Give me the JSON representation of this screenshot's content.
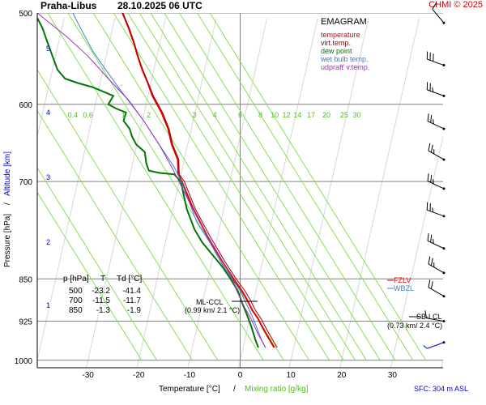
{
  "header": {
    "station": "Praha-Libus",
    "datetime": "28.10.2025 06 UTC",
    "credit": "CHMI © 2025"
  },
  "legend": {
    "title": "EMAGRAM",
    "items": [
      {
        "label": "temperature",
        "color": "#e00000"
      },
      {
        "label": "virt.temp.",
        "color": "#a00000"
      },
      {
        "label": "dew point",
        "color": "#007700"
      },
      {
        "label": "wet bulb temp.",
        "color": "#3a7fd0"
      },
      {
        "label": "udprafť v.temp.",
        "color": "#a030c0"
      }
    ]
  },
  "table": {
    "headers": [
      "p [hPa]",
      "T",
      "Td [°C]"
    ],
    "rows": [
      [
        "500",
        "-23.2",
        "-41.4"
      ],
      [
        "700",
        "-11.5",
        "-11.7"
      ],
      [
        "850",
        "-1.3",
        "-1.9"
      ]
    ]
  },
  "annotations": {
    "ml_ccl_label": "ML-CCL",
    "ml_ccl_value": "(0.99 km/ 2.1 °C)",
    "sb_lcl_label": "SB-LCL",
    "sb_lcl_value": "(0.73 km/ 2.4 °C)",
    "fzl": "FZLV",
    "wbzl": "WBZL",
    "sfc": "SFC: 304 m ASL"
  },
  "colors": {
    "temperature": "#e00000",
    "virt_temp": "#a00000",
    "dew_point": "#007700",
    "wet_bulb": "#3a7fd0",
    "updraft": "#a030c0",
    "mixing_ratio_lines": "#7ddc4a",
    "isotherm_grid": "#808080",
    "altitude_label": "#0000cc",
    "mixing_label": "#55bb22",
    "wind_barb": "#000000",
    "sfc_wind": "#0000cc"
  },
  "chart_data": {
    "type": "line",
    "title": "EMAGRAM",
    "xlabel": "Temperature [°C]",
    "xlabel_sep": "/",
    "xlabel2": "Mixing ratio [g/kg]",
    "ylabel": "Pressure [hPa]",
    "ylabel_sep": "/",
    "ylabel2": "Altitude [km]",
    "y_scale": "log",
    "x_range": [
      -40,
      40
    ],
    "y_range": [
      1015,
      500
    ],
    "x_ticks": [
      -30,
      -20,
      -10,
      0,
      10,
      20,
      30
    ],
    "y_ticks": [
      500,
      600,
      700,
      850,
      925,
      1000
    ],
    "altitude_ticks": [
      {
        "km": 1,
        "p": 896
      },
      {
        "km": 2,
        "p": 790
      },
      {
        "km": 3,
        "p": 694
      },
      {
        "km": 4,
        "p": 610
      },
      {
        "km": 5,
        "p": 537
      }
    ],
    "mixing_ratio_labels": [
      "0.4",
      "0.6",
      "1",
      "2",
      "3",
      "4",
      "6",
      "8",
      "10",
      "12",
      "14",
      "17",
      "20",
      "25",
      "30"
    ],
    "mixing_ratio_label_temps": [
      -33,
      -30,
      -23,
      -18,
      -9,
      -5,
      0,
      4,
      6.8,
      9.1,
      11.3,
      14,
      17,
      20.5,
      23
    ],
    "series": [
      {
        "name": "temperature",
        "color": "#e00000",
        "points": [
          [
            6.7,
            975
          ],
          [
            5.8,
            960
          ],
          [
            4.6,
            940
          ],
          [
            3.5,
            920
          ],
          [
            2.4,
            905
          ],
          [
            1.3,
            885
          ],
          [
            0.3,
            870
          ],
          [
            -1.3,
            850
          ],
          [
            -3.6,
            820
          ],
          [
            -6.5,
            780
          ],
          [
            -9.2,
            740
          ],
          [
            -11.5,
            700
          ],
          [
            -12.2,
            690
          ],
          [
            -12.3,
            670
          ],
          [
            -13.5,
            650
          ],
          [
            -14.2,
            630
          ],
          [
            -15.5,
            610
          ],
          [
            -17.3,
            590
          ],
          [
            -18.2,
            575
          ],
          [
            -19.3,
            560
          ],
          [
            -20.2,
            545
          ],
          [
            -21.0,
            530
          ],
          [
            -22.0,
            515
          ],
          [
            -23.2,
            500
          ]
        ]
      },
      {
        "name": "virt.temp.",
        "color": "#a00000",
        "points": [
          [
            7.3,
            975
          ],
          [
            6.4,
            960
          ],
          [
            5.2,
            940
          ],
          [
            4.1,
            920
          ],
          [
            3.0,
            905
          ],
          [
            1.9,
            885
          ],
          [
            0.9,
            870
          ],
          [
            -0.8,
            850
          ],
          [
            -3.1,
            820
          ],
          [
            -6.0,
            780
          ],
          [
            -8.8,
            740
          ],
          [
            -11.0,
            700
          ],
          [
            -12.0,
            690
          ],
          [
            -12.1,
            670
          ],
          [
            -13.3,
            650
          ],
          [
            -14.0,
            630
          ],
          [
            -15.3,
            610
          ],
          [
            -17.1,
            590
          ],
          [
            -18.1,
            575
          ],
          [
            -19.2,
            560
          ],
          [
            -20.1,
            545
          ],
          [
            -20.9,
            530
          ],
          [
            -21.9,
            515
          ],
          [
            -23.1,
            500
          ]
        ]
      },
      {
        "name": "dew point",
        "color": "#007700",
        "points": [
          [
            3.6,
            975
          ],
          [
            3.0,
            960
          ],
          [
            2.2,
            935
          ],
          [
            1.2,
            910
          ],
          [
            0.3,
            890
          ],
          [
            -0.5,
            870
          ],
          [
            -1.9,
            850
          ],
          [
            -3.5,
            830
          ],
          [
            -5.5,
            810
          ],
          [
            -7.5,
            790
          ],
          [
            -9.0,
            770
          ],
          [
            -10.5,
            740
          ],
          [
            -11.7,
            700
          ],
          [
            -13.0,
            690
          ],
          [
            -16.0,
            688
          ],
          [
            -18.0,
            685
          ],
          [
            -18.5,
            675
          ],
          [
            -18.8,
            660
          ],
          [
            -20.5,
            650
          ],
          [
            -21.3,
            640
          ],
          [
            -21.8,
            630
          ],
          [
            -23.0,
            620
          ],
          [
            -22.5,
            610
          ],
          [
            -24.5,
            605
          ],
          [
            -26.0,
            600
          ],
          [
            -25.0,
            590
          ],
          [
            -27.0,
            585
          ],
          [
            -29.0,
            580
          ],
          [
            -32.0,
            575
          ],
          [
            -34.5,
            570
          ],
          [
            -36.0,
            560
          ],
          [
            -37.0,
            545
          ],
          [
            -38.0,
            530
          ],
          [
            -39.0,
            515
          ],
          [
            -40.0,
            505
          ],
          [
            -41.4,
            500
          ]
        ]
      },
      {
        "name": "wet bulb temp.",
        "color": "#3a7fd0",
        "points": [
          [
            5.0,
            975
          ],
          [
            4.2,
            960
          ],
          [
            3.2,
            935
          ],
          [
            2.1,
            910
          ],
          [
            1.0,
            890
          ],
          [
            0.0,
            870
          ],
          [
            -1.6,
            850
          ],
          [
            -3.6,
            825
          ],
          [
            -6.0,
            790
          ],
          [
            -8.5,
            760
          ],
          [
            -11.6,
            700
          ],
          [
            -13.0,
            680
          ],
          [
            -15.0,
            660
          ],
          [
            -17.0,
            640
          ],
          [
            -19.0,
            620
          ],
          [
            -21.5,
            600
          ],
          [
            -24.0,
            580
          ],
          [
            -26.5,
            560
          ],
          [
            -29.0,
            540
          ],
          [
            -31.0,
            520
          ],
          [
            -33.0,
            500
          ]
        ]
      },
      {
        "name": "udprafť v.temp.",
        "color": "#a030c0",
        "points": [
          [
            5.0,
            975
          ],
          [
            3.6,
            950
          ],
          [
            2.1,
            920
          ],
          [
            0.9,
            900
          ],
          [
            -0.7,
            870
          ],
          [
            -1.5,
            850
          ],
          [
            -3.5,
            820
          ],
          [
            -5.7,
            790
          ],
          [
            -8.3,
            755
          ],
          [
            -11.0,
            715
          ],
          [
            -13.5,
            680
          ],
          [
            -16.0,
            650
          ],
          [
            -19.0,
            620
          ],
          [
            -22.0,
            595
          ],
          [
            -26.0,
            570
          ],
          [
            -30.0,
            545
          ],
          [
            -34.0,
            525
          ],
          [
            -40.0,
            500
          ]
        ]
      }
    ],
    "wind_barbs": [
      {
        "p": 510,
        "dir": 320,
        "speed_kt": 10
      },
      {
        "p": 555,
        "dir": 290,
        "speed_kt": 30
      },
      {
        "p": 590,
        "dir": 290,
        "speed_kt": 25
      },
      {
        "p": 630,
        "dir": 295,
        "speed_kt": 25
      },
      {
        "p": 670,
        "dir": 300,
        "speed_kt": 25
      },
      {
        "p": 710,
        "dir": 295,
        "speed_kt": 25
      },
      {
        "p": 750,
        "dir": 290,
        "speed_kt": 25
      },
      {
        "p": 800,
        "dir": 295,
        "speed_kt": 25
      },
      {
        "p": 840,
        "dir": 300,
        "speed_kt": 25
      },
      {
        "p": 880,
        "dir": 300,
        "speed_kt": 20
      },
      {
        "p": 925,
        "dir": 280,
        "speed_kt": 10
      },
      {
        "p": 965,
        "dir": 250,
        "speed_kt": 5
      }
    ]
  }
}
